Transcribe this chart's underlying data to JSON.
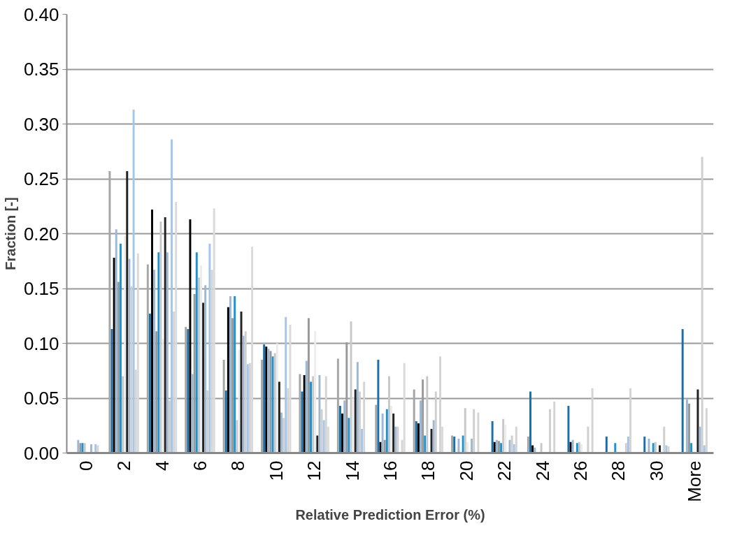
{
  "chart_data": {
    "type": "bar",
    "xlabel": "Relative Prediction Error (%)",
    "ylabel": "Fraction [-]",
    "categories": [
      "0",
      "2",
      "4",
      "6",
      "8",
      "10",
      "12",
      "14",
      "16",
      "18",
      "20",
      "22",
      "24",
      "26",
      "28",
      "30",
      "More"
    ],
    "ylim": [
      0,
      0.4
    ],
    "yticks": [
      {
        "value": 0,
        "label": "0.00"
      },
      {
        "value": 0.05,
        "label": "0.05"
      },
      {
        "value": 0.1,
        "label": "0.10"
      },
      {
        "value": 0.15,
        "label": "0.15"
      },
      {
        "value": 0.2,
        "label": "0.20"
      },
      {
        "value": 0.25,
        "label": "0.25"
      },
      {
        "value": 0.3,
        "label": "0.30"
      },
      {
        "value": 0.35,
        "label": "0.35"
      },
      {
        "value": 0.4,
        "label": "0.40"
      }
    ],
    "grid": "y",
    "series": [
      {
        "color": "#a6a6a6",
        "values": [
          0,
          0.257,
          0.172,
          0.115,
          0.085,
          0.085,
          0.072,
          0.086,
          0.044,
          0.058,
          0.016,
          0,
          0.015,
          0,
          0,
          0,
          0
        ]
      },
      {
        "color": "#1a6fa8",
        "values": [
          0,
          0.113,
          0.127,
          0.113,
          0.057,
          0.099,
          0.056,
          0.043,
          0.085,
          0.029,
          0.015,
          0.029,
          0.056,
          0.043,
          0.015,
          0.015,
          0.113
        ]
      },
      {
        "color": "#000000",
        "values": [
          0,
          0.178,
          0.222,
          0.213,
          0.133,
          0.097,
          0.071,
          0.036,
          0.01,
          0.027,
          0,
          0.01,
          0.007,
          0.01,
          0,
          0,
          0
        ]
      },
      {
        "color": "#9bb8d6",
        "values": [
          0.012,
          0.204,
          0.167,
          0.072,
          0.143,
          0.095,
          0.084,
          0.048,
          0.036,
          0.048,
          0.013,
          0.012,
          0.005,
          0.012,
          0,
          0.013,
          0.049
        ]
      },
      {
        "color": "#999999",
        "values": [
          0.009,
          0.156,
          0.111,
          0.145,
          0.123,
          0.093,
          0.123,
          0.101,
          0.012,
          0.067,
          0,
          0.011,
          0,
          0,
          0,
          0,
          0.045
        ]
      },
      {
        "color": "#1b93d1",
        "values": [
          0.009,
          0.191,
          0.183,
          0.183,
          0.143,
          0.088,
          0.065,
          0.032,
          0.04,
          0.016,
          0.016,
          0.009,
          0,
          0.009,
          0.009,
          0.009,
          0.009
        ]
      },
      {
        "color": "#c8c8c8",
        "values": [
          0.009,
          0.07,
          0.211,
          0.16,
          0.03,
          0.091,
          0.07,
          0.12,
          0.07,
          0.07,
          0.041,
          0.031,
          0.009,
          0.01,
          0,
          0.01,
          0
        ]
      },
      {
        "color": "#ececec",
        "values": [
          0,
          0.198,
          0.104,
          0.171,
          0.094,
          0.1,
          0.111,
          0.05,
          0.043,
          0,
          0.01,
          0.026,
          0,
          0.008,
          0,
          0,
          0
        ]
      },
      {
        "color": "#222222",
        "values": [
          0,
          0.257,
          0.215,
          0.137,
          0.129,
          0.065,
          0.016,
          0.058,
          0.036,
          0.022,
          0,
          0,
          0,
          0,
          0,
          0.007,
          0.058
        ]
      },
      {
        "color": "#9fb7d0",
        "values": [
          0.008,
          0.177,
          0.183,
          0.153,
          0.107,
          0.037,
          0.071,
          0.083,
          0.024,
          0.03,
          0.013,
          0.012,
          0,
          0,
          0,
          0,
          0.024
        ]
      },
      {
        "color": "#cfcfcf",
        "values": [
          0,
          0.152,
          0.048,
          0.057,
          0.111,
          0.032,
          0.04,
          0.056,
          0.024,
          0.056,
          0.04,
          0.016,
          0.04,
          0.024,
          0.009,
          0.024,
          0.27
        ]
      },
      {
        "color": "#a4c6ea",
        "values": [
          0.008,
          0.313,
          0.286,
          0.191,
          0.081,
          0.124,
          0.03,
          0.022,
          0,
          0,
          0,
          0.008,
          0,
          0,
          0.015,
          0.007,
          0.007
        ]
      },
      {
        "color": "#d4d4d4",
        "values": [
          0.007,
          0.076,
          0.129,
          0.167,
          0.082,
          0.059,
          0.07,
          0.065,
          0.012,
          0.088,
          0.037,
          0.024,
          0.047,
          0.059,
          0.059,
          0.006,
          0.041
        ]
      },
      {
        "color": "#dadada",
        "values": [
          0,
          0.182,
          0.229,
          0.223,
          0.188,
          0.117,
          0.024,
          0,
          0.082,
          0.024,
          0,
          0,
          0,
          0,
          0,
          0,
          0
        ]
      }
    ]
  }
}
